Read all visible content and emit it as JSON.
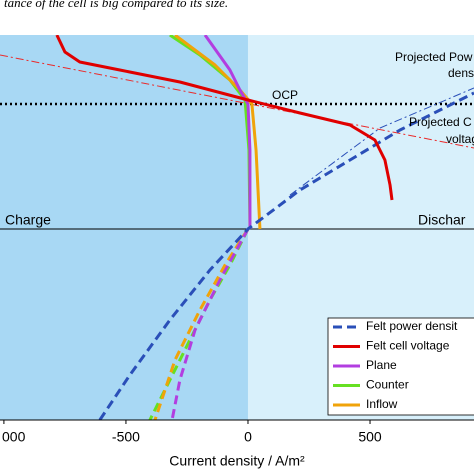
{
  "chart_data": {
    "type": "line",
    "title": "tance of the cell is big compared to its size.",
    "x_label": "Current density / A/m²",
    "xlim": [
      -1016,
      926
    ],
    "ylim": [
      -1.91,
      1.94
    ],
    "xticks": [
      {
        "value": -1000,
        "label": "000"
      },
      -500,
      0,
      500
    ],
    "region_split": 0,
    "region_colors": [
      "#a8d8f4",
      "#d8f0fb"
    ],
    "reference_lines": [
      {
        "name": "OCP",
        "y": 1.25,
        "style": "dotted",
        "color": "#000000"
      },
      {
        "y": 0,
        "style": "solid",
        "color": "#000000"
      }
    ],
    "annotations": [
      {
        "text": "Projected Pow",
        "color": "#2a4fb8"
      },
      {
        "text": "dens",
        "color": "#2a4fb8"
      },
      {
        "text": "Projected C",
        "color": "#e00000"
      },
      {
        "text": "voltag",
        "color": "#e00000"
      },
      {
        "text": "Charge",
        "color": "#000000"
      },
      {
        "text": "Dischar",
        "color": "#000000"
      }
    ],
    "series": [
      {
        "color": "#ea2b2b",
        "style": "dashdot",
        "x": [
          -1016,
          926
        ],
        "values": [
          1.74,
          0.81
        ]
      },
      {
        "color": "#2a4fb8",
        "style": "dashdot",
        "x": [
          172,
          541,
          926
        ],
        "values": [
          0.34,
          1.01,
          1.41
        ]
      },
      {
        "color": "#66e022",
        "style": "dashed",
        "x": [
          0,
          -74,
          -156,
          -238,
          -320,
          -402
        ],
        "values": [
          0,
          -0.36,
          -0.71,
          -1.11,
          -1.51,
          -1.91
        ]
      },
      {
        "color": "#f0a30a",
        "style": "dashed",
        "x": [
          0,
          -94,
          -197,
          -299,
          -381
        ],
        "values": [
          0,
          -0.36,
          -0.81,
          -1.31,
          -1.91
        ]
      },
      {
        "color": "#b23ee0",
        "style": "dashed",
        "x": [
          0,
          -115,
          -217,
          -279,
          -311
        ],
        "values": [
          0,
          -0.51,
          -1.01,
          -1.51,
          -1.91
        ]
      },
      {
        "name": "Counter",
        "color": "#66e022",
        "style": "solid",
        "x": [
          -320,
          -197,
          -74,
          -12,
          4,
          8
        ],
        "values": [
          1.94,
          1.74,
          1.49,
          1.29,
          0.79,
          0
        ]
      },
      {
        "name": "Inflow",
        "color": "#f0a30a",
        "style": "solid",
        "x": [
          -299,
          -135,
          -33,
          16,
          33,
          49
        ],
        "values": [
          1.94,
          1.64,
          1.39,
          1.25,
          0.79,
          0
        ]
      },
      {
        "name": "Plane",
        "color": "#b23ee0",
        "style": "solid",
        "x": [
          -176,
          -74,
          -33,
          0,
          8,
          8
        ],
        "values": [
          1.94,
          1.59,
          1.39,
          1.25,
          0.79,
          0
        ]
      },
      {
        "name": "Felt power densit",
        "color": "#2a4fb8",
        "style": "dashed",
        "x": [
          -607,
          -484,
          -320,
          -156,
          0,
          213,
          418,
          623,
          787,
          926
        ],
        "values": [
          -1.91,
          -1.46,
          -0.91,
          -0.41,
          0,
          0.39,
          0.69,
          0.99,
          1.19,
          1.36
        ]
      },
      {
        "name": "Felt cell voltage",
        "color": "#e00000",
        "style": "solid",
        "x": [
          -783,
          -750,
          -689,
          -525,
          -279,
          0,
          213,
          418,
          520,
          561,
          582,
          590
        ],
        "values": [
          1.94,
          1.77,
          1.67,
          1.59,
          1.47,
          1.29,
          1.16,
          1.04,
          0.89,
          0.69,
          0.44,
          0.29
        ]
      }
    ],
    "legend_order": [
      "Felt power densit",
      "Felt cell voltage",
      "Plane",
      "Counter",
      "Inflow"
    ]
  }
}
